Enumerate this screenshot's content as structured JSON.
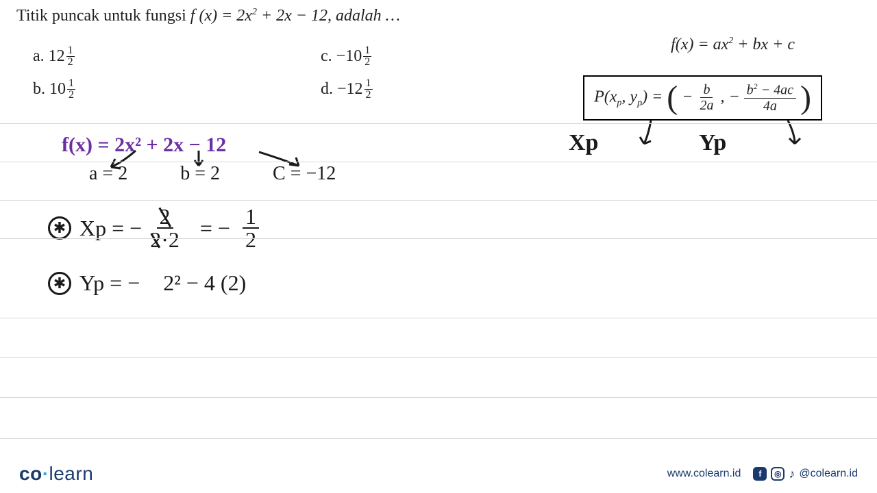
{
  "ruled_lines_y": [
    180,
    236,
    292,
    348,
    464,
    522,
    580,
    640
  ],
  "colors": {
    "text": "#222222",
    "handwriting": "#1a1a1a",
    "handwriting_purple": "#6a2fa3",
    "rule": "#d8d8d8",
    "brand_dark": "#1a3a6e",
    "brand_accent": "#2aa8e0",
    "background": "#ffffff"
  },
  "question": {
    "prefix": "Titik puncak untuk fungsi ",
    "func": "f (x) = 2x",
    "sq": "2",
    "rest": " + 2x − 12, adalah …"
  },
  "options": {
    "a_label": "a.  12",
    "b_label": "b.  10",
    "c_label": "c.  −10",
    "d_label": "d.  −12",
    "frac_num": "1",
    "frac_den": "2"
  },
  "formula_top": {
    "lhs": "f(x) = ax",
    "sq": "2",
    "rhs": " + bx + c"
  },
  "formula_box": {
    "lhs": "P(x",
    "sub_p1": "p",
    "mid": ", y",
    "sub_p2": "p",
    "eq": ") = ",
    "minus1": "−",
    "f1_num": "b",
    "f1_den": "2a",
    "comma": ", ",
    "minus2": "−",
    "f2_num_a": "b",
    "f2_num_sq": "2",
    "f2_num_b": " − 4ac",
    "f2_den": "4a"
  },
  "hw": {
    "fx": "f(x) =  2x²  + 2x − 12",
    "a": "a = 2",
    "b": "b = 2",
    "c": "C = −12",
    "xp_label": "Xp",
    "yp_label": "Yp",
    "star": "✱",
    "xp_eq": "Xp  =  −",
    "xp_num": "2",
    "xp_den1": "2",
    "xp_den2": "·2",
    "xp_res_eq": "=   −",
    "xp_res_num": "1",
    "xp_res_den": "2",
    "yp_eq": "Yp  =   −",
    "yp_num": "2² − 4 (2)"
  },
  "footer": {
    "brand_co": "co",
    "brand_dot": "·",
    "brand_learn": "learn",
    "url": "www.colearn.id",
    "handle": "@colearn.id",
    "icons": {
      "fb": "f",
      "ig": "◎",
      "tt": "♪"
    }
  }
}
